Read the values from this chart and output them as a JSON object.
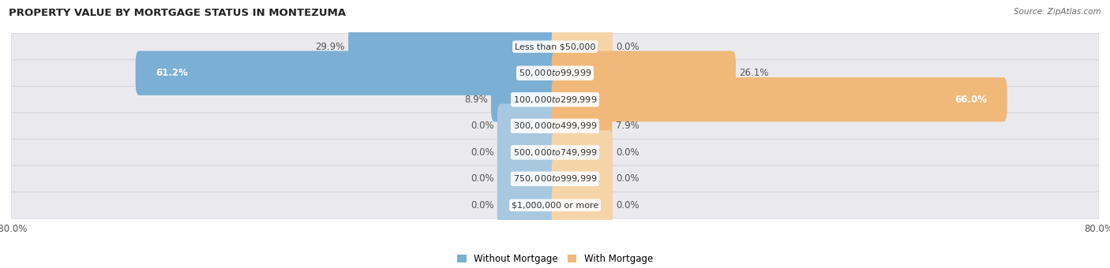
{
  "title": "PROPERTY VALUE BY MORTGAGE STATUS IN MONTEZUMA",
  "source": "Source: ZipAtlas.com",
  "categories": [
    "Less than $50,000",
    "$50,000 to $99,999",
    "$100,000 to $299,999",
    "$300,000 to $499,999",
    "$500,000 to $749,999",
    "$750,000 to $999,999",
    "$1,000,000 or more"
  ],
  "without_mortgage": [
    29.9,
    61.2,
    8.9,
    0.0,
    0.0,
    0.0,
    0.0
  ],
  "with_mortgage": [
    0.0,
    26.1,
    66.0,
    7.9,
    0.0,
    0.0,
    0.0
  ],
  "color_without": "#7BAFD4",
  "color_with": "#F0B97A",
  "color_without_zero": "#A8C8E0",
  "color_with_zero": "#F5D5A8",
  "xlim_left": -80,
  "xlim_right": 80,
  "bar_bg_color": "#EAEAEE",
  "label_fontsize": 8.5,
  "title_fontsize": 9.5,
  "source_fontsize": 7.5,
  "legend_labels": [
    "Without Mortgage",
    "With Mortgage"
  ],
  "zero_bar_width": 8.0,
  "bar_height": 0.68
}
